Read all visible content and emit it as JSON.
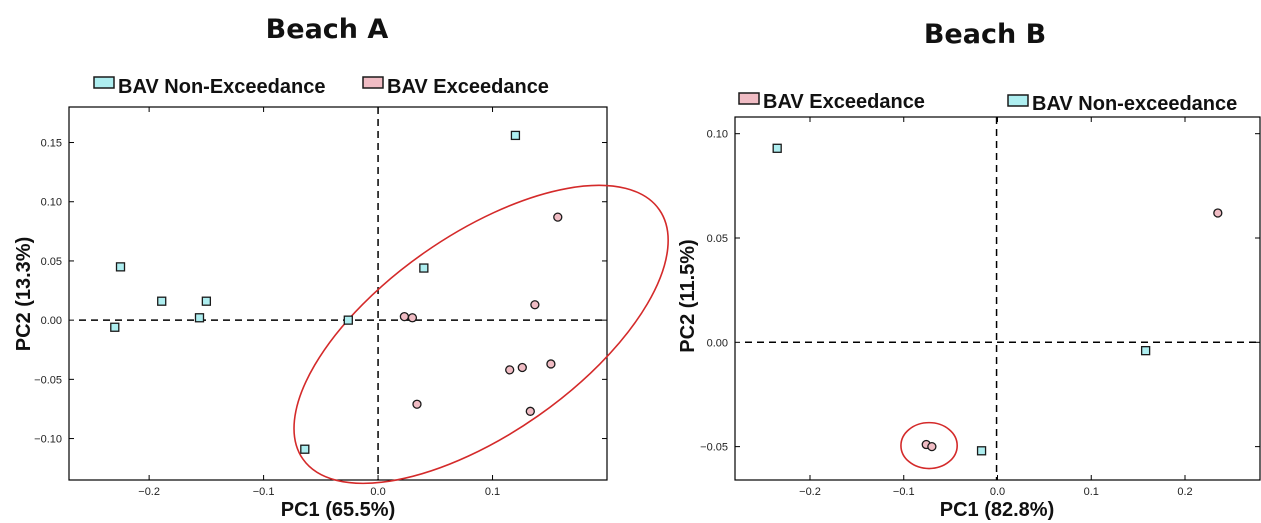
{
  "colors": {
    "exceedance_fill": "#f0bcc4",
    "non_exceedance_fill": "#aeeef0",
    "ellipse_stroke": "#d42a2a",
    "marker_stroke": "#1a1a1a"
  },
  "chart_data": [
    {
      "type": "scatter",
      "title": "Beach A",
      "xlabel": "PC1 (65.5%)",
      "ylabel": "PC2 (13.3%)",
      "xlim": [
        -0.27,
        0.2
      ],
      "ylim": [
        -0.135,
        0.18
      ],
      "xticks": [
        -0.2,
        -0.1,
        0.0,
        0.1
      ],
      "xtick_labels": [
        "−0.2",
        "−0.1",
        "0.0",
        "0.1"
      ],
      "yticks": [
        -0.1,
        -0.05,
        0.0,
        0.05,
        0.1,
        0.15
      ],
      "ytick_labels": [
        "−0.10",
        "−0.05",
        "0.00",
        "0.05",
        "0.10",
        "0.15"
      ],
      "grid": false,
      "legend_position": "top",
      "legend": [
        {
          "label": "BAV Non-Exceedance",
          "series": "non_exceedance"
        },
        {
          "label": "BAV Exceedance",
          "series": "exceedance"
        }
      ],
      "reference_lines": {
        "x": 0.0,
        "y": 0.0
      },
      "series": [
        {
          "key": "non_exceedance",
          "marker": "square",
          "points": [
            {
              "x": -0.23,
              "y": -0.006
            },
            {
              "x": -0.225,
              "y": 0.045
            },
            {
              "x": -0.189,
              "y": 0.016
            },
            {
              "x": -0.156,
              "y": 0.002
            },
            {
              "x": -0.15,
              "y": 0.016
            },
            {
              "x": -0.064,
              "y": -0.109
            },
            {
              "x": -0.026,
              "y": 0.0
            },
            {
              "x": 0.04,
              "y": 0.044
            },
            {
              "x": 0.12,
              "y": 0.156
            }
          ]
        },
        {
          "key": "exceedance",
          "marker": "circle",
          "points": [
            {
              "x": 0.023,
              "y": 0.003
            },
            {
              "x": 0.03,
              "y": 0.002
            },
            {
              "x": 0.034,
              "y": -0.071
            },
            {
              "x": 0.115,
              "y": -0.042
            },
            {
              "x": 0.126,
              "y": -0.04
            },
            {
              "x": 0.133,
              "y": -0.077
            },
            {
              "x": 0.137,
              "y": 0.013
            },
            {
              "x": 0.151,
              "y": -0.037
            },
            {
              "x": 0.157,
              "y": 0.087
            }
          ]
        }
      ],
      "ellipse": {
        "cx": 0.09,
        "cy": -0.012,
        "rx": 0.19,
        "ry": 0.084,
        "angle_deg": 35
      }
    },
    {
      "type": "scatter",
      "title": "Beach B",
      "xlabel": "PC1 (82.8%)",
      "ylabel": "PC2 (11.5%)",
      "xlim": [
        -0.28,
        0.28
      ],
      "ylim": [
        -0.066,
        0.108
      ],
      "xticks": [
        -0.2,
        -0.1,
        0.0,
        0.1,
        0.2
      ],
      "xtick_labels": [
        "−0.2",
        "−0.1",
        "0.0",
        "0.1",
        "0.2"
      ],
      "yticks": [
        -0.05,
        0.0,
        0.05,
        0.1
      ],
      "ytick_labels": [
        "−0.05",
        "0.00",
        "0.05",
        "0.10"
      ],
      "grid": false,
      "legend_position": "top",
      "legend": [
        {
          "label": "BAV Exceedance",
          "series": "exceedance"
        },
        {
          "label": "BAV Non-exceedance",
          "series": "non_exceedance"
        }
      ],
      "reference_lines": {
        "x": -0.001,
        "y": 0.0
      },
      "series": [
        {
          "key": "exceedance",
          "marker": "circle",
          "points": [
            {
              "x": -0.076,
              "y": -0.049
            },
            {
              "x": -0.07,
              "y": -0.05
            },
            {
              "x": 0.235,
              "y": 0.062
            }
          ]
        },
        {
          "key": "non_exceedance",
          "marker": "square",
          "points": [
            {
              "x": -0.235,
              "y": 0.093
            },
            {
              "x": -0.017,
              "y": -0.052
            },
            {
              "x": 0.158,
              "y": -0.004
            }
          ]
        }
      ],
      "ellipse": {
        "cx": -0.073,
        "cy": -0.0495,
        "rx": 0.03,
        "ry": 0.011,
        "angle_deg": 0
      }
    }
  ]
}
